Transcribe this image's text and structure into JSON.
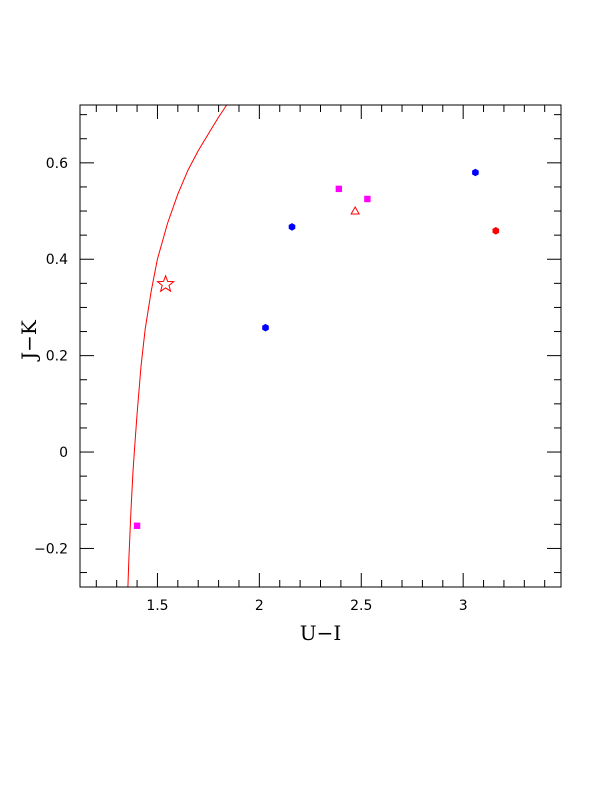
{
  "chart_data": {
    "type": "scatter",
    "title": "",
    "xlabel": "U−I",
    "ylabel": "J−K",
    "xlim": [
      1.12,
      3.48
    ],
    "ylim": [
      -0.28,
      0.72
    ],
    "x_ticks": [
      {
        "value": 1.5,
        "label": "1.5"
      },
      {
        "value": 2,
        "label": "2"
      },
      {
        "value": 2.5,
        "label": "2.5"
      },
      {
        "value": 3,
        "label": "3"
      }
    ],
    "x_minor_step": 0.1,
    "y_ticks": [
      {
        "value": -0.2,
        "label": "−0.2"
      },
      {
        "value": 0,
        "label": "0"
      },
      {
        "value": 0.2,
        "label": "0.2"
      },
      {
        "value": 0.4,
        "label": "0.4"
      },
      {
        "value": 0.6,
        "label": "0.6"
      }
    ],
    "y_minor_step": 0.05,
    "grid": false,
    "curve": {
      "color": "#ff0000",
      "points": [
        [
          1.355,
          -0.28
        ],
        [
          1.36,
          -0.22
        ],
        [
          1.37,
          -0.12
        ],
        [
          1.38,
          -0.04
        ],
        [
          1.39,
          0.02
        ],
        [
          1.4,
          0.08
        ],
        [
          1.42,
          0.18
        ],
        [
          1.44,
          0.255
        ],
        [
          1.47,
          0.335
        ],
        [
          1.5,
          0.4
        ],
        [
          1.55,
          0.475
        ],
        [
          1.6,
          0.535
        ],
        [
          1.65,
          0.585
        ],
        [
          1.7,
          0.625
        ],
        [
          1.75,
          0.66
        ],
        [
          1.8,
          0.695
        ],
        [
          1.84,
          0.72
        ]
      ]
    },
    "series": [
      {
        "marker": "hexagon",
        "color": "#0000ff",
        "points": [
          [
            2.03,
            0.258
          ],
          [
            2.16,
            0.467
          ],
          [
            3.06,
            0.58
          ]
        ]
      },
      {
        "marker": "square",
        "color": "#ff00ff",
        "points": [
          [
            1.4,
            -0.153
          ],
          [
            2.39,
            0.546
          ],
          [
            2.53,
            0.525
          ]
        ]
      },
      {
        "marker": "triangle-open",
        "color": "#ff0000",
        "points": [
          [
            2.47,
            0.5
          ]
        ]
      },
      {
        "marker": "hexagon",
        "color": "#ff0000",
        "points": [
          [
            3.16,
            0.459
          ]
        ]
      },
      {
        "marker": "star-open",
        "color": "#ff0000",
        "points": [
          [
            1.54,
            0.348
          ]
        ]
      }
    ]
  }
}
